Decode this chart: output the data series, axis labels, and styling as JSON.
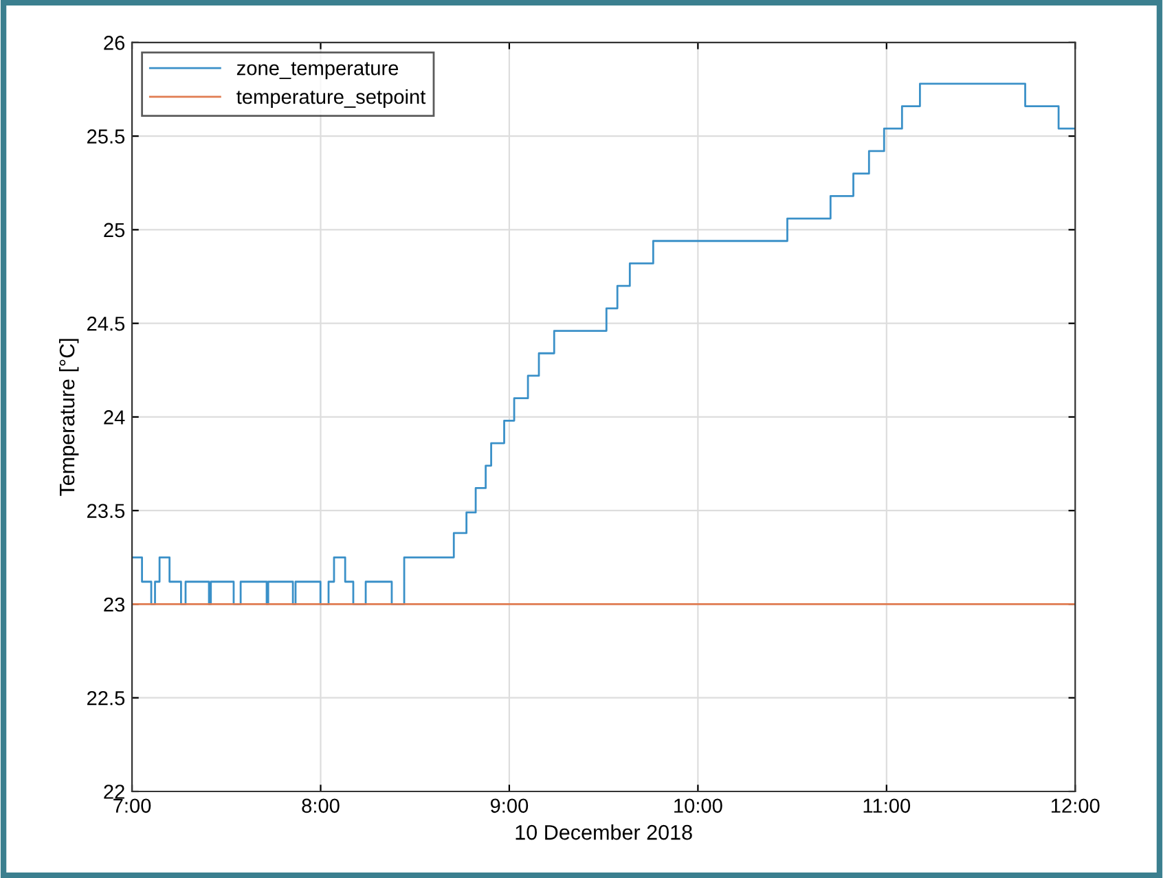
{
  "chart_data": {
    "type": "step",
    "xlabel": "10 December 2018",
    "ylabel": "Temperature [°C]",
    "xlim": [
      7,
      12
    ],
    "ylim": [
      22,
      26
    ],
    "xticks": [
      {
        "value": 7,
        "label": "7:00"
      },
      {
        "value": 8,
        "label": "8:00"
      },
      {
        "value": 9,
        "label": "9:00"
      },
      {
        "value": 10,
        "label": "10:00"
      },
      {
        "value": 11,
        "label": "11:00"
      },
      {
        "value": 12,
        "label": "12:00"
      }
    ],
    "yticks": [
      22,
      22.5,
      23,
      23.5,
      24,
      24.5,
      25,
      25.5,
      26
    ],
    "grid": true,
    "legend": "top left",
    "line_style": "solid",
    "marker": "none",
    "series": [
      {
        "name": "zone_temperature",
        "color": "#3a90c8",
        "x": [
          7.0,
          7.053,
          7.102,
          7.122,
          7.146,
          7.199,
          7.26,
          7.284,
          7.408,
          7.418,
          7.539,
          7.576,
          7.714,
          7.722,
          7.853,
          7.867,
          7.999,
          8.042,
          8.071,
          8.13,
          8.173,
          8.239,
          8.377,
          8.443,
          8.706,
          8.773,
          8.822,
          8.875,
          8.904,
          8.973,
          9.026,
          9.099,
          9.157,
          9.238,
          9.515,
          9.573,
          9.639,
          9.763,
          10.474,
          10.703,
          10.824,
          10.907,
          10.987,
          11.082,
          11.177,
          11.735,
          11.912,
          12.0
        ],
        "values": [
          23.25,
          23.12,
          23.0,
          23.12,
          23.25,
          23.12,
          23.0,
          23.12,
          23.0,
          23.12,
          23.0,
          23.12,
          23.0,
          23.12,
          23.0,
          23.12,
          23.0,
          23.12,
          23.25,
          23.12,
          23.0,
          23.12,
          23.0,
          23.25,
          23.38,
          23.49,
          23.62,
          23.74,
          23.86,
          23.98,
          24.1,
          24.22,
          24.34,
          24.46,
          24.58,
          24.7,
          24.82,
          24.94,
          25.06,
          25.18,
          25.3,
          25.42,
          25.54,
          25.66,
          25.78,
          25.66,
          25.54,
          25.54
        ]
      },
      {
        "name": "temperature_setpoint",
        "color": "#e07b50",
        "type": "line",
        "x": [
          7,
          12
        ],
        "values": [
          23,
          23
        ]
      }
    ]
  }
}
